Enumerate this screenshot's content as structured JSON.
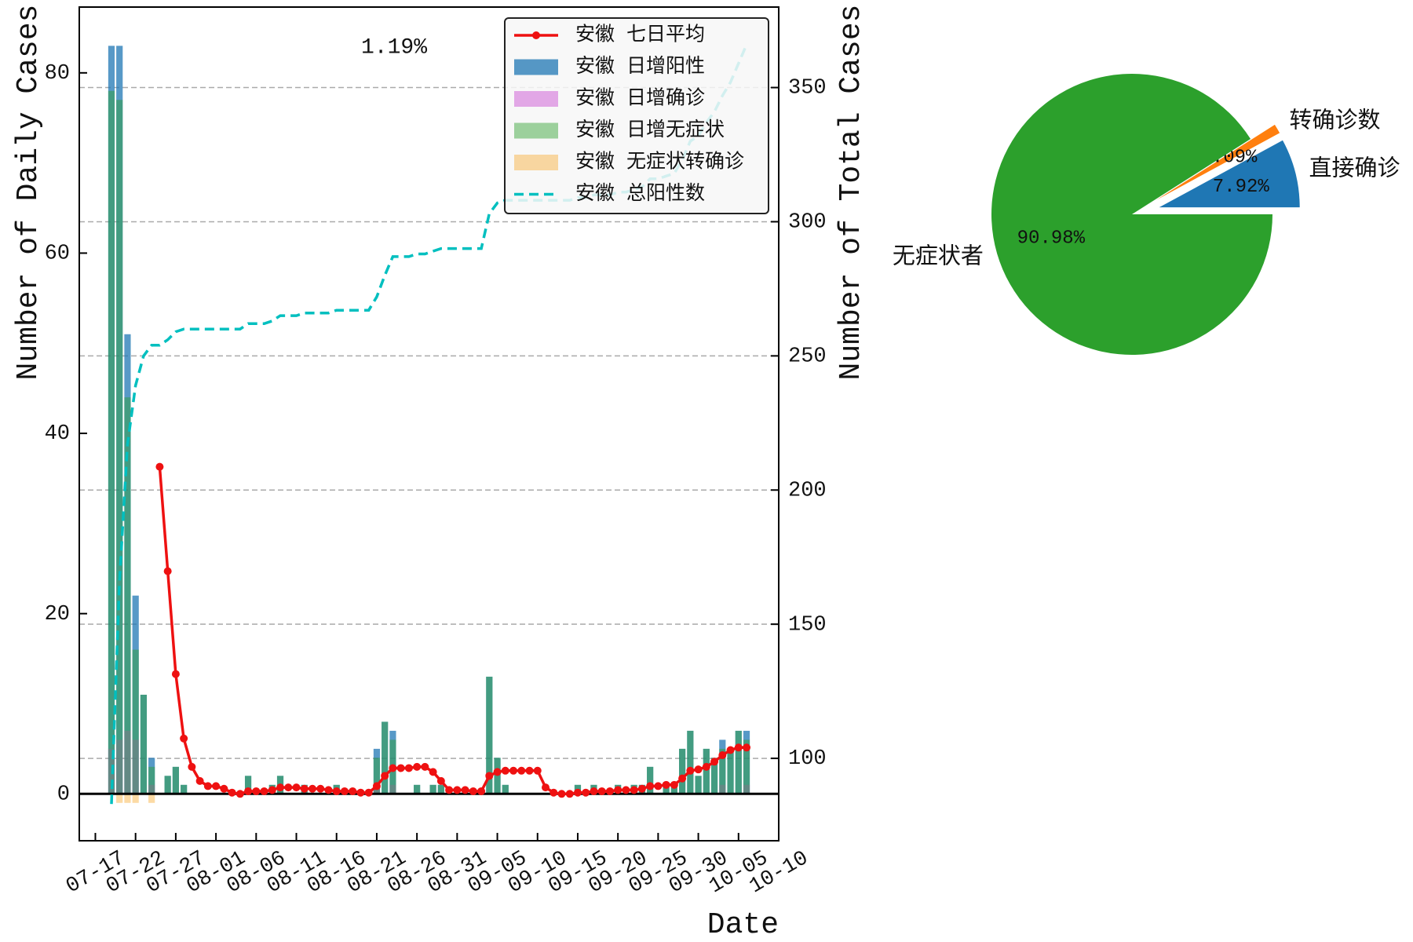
{
  "chart_data": [
    {
      "type": "bar",
      "xlabel": "Date",
      "ylabel": "Number of Daily Cases",
      "y2label": "Number of Total Cases",
      "annotation": "1.19%",
      "annotation_color": "#ff4444",
      "x": [
        "07-19",
        "07-20",
        "07-21",
        "07-22",
        "07-23",
        "07-24",
        "07-25",
        "07-26",
        "07-27",
        "07-28",
        "07-29",
        "07-30",
        "07-31",
        "08-01",
        "08-02",
        "08-03",
        "08-04",
        "08-05",
        "08-06",
        "08-07",
        "08-08",
        "08-09",
        "08-10",
        "08-11",
        "08-12",
        "08-13",
        "08-14",
        "08-15",
        "08-16",
        "08-17",
        "08-18",
        "08-19",
        "08-20",
        "08-21",
        "08-22",
        "08-23",
        "08-24",
        "08-25",
        "08-26",
        "08-27",
        "08-28",
        "08-29",
        "08-30",
        "08-31",
        "09-01",
        "09-02",
        "09-03",
        "09-04",
        "09-05",
        "09-06",
        "09-07",
        "09-08",
        "09-09",
        "09-10",
        "09-11",
        "09-12",
        "09-13",
        "09-14",
        "09-15",
        "09-16",
        "09-17",
        "09-18",
        "09-19",
        "09-20",
        "09-21",
        "09-22",
        "09-23",
        "09-24",
        "09-25",
        "09-26",
        "09-27",
        "09-28",
        "09-29",
        "09-30",
        "10-01",
        "10-02",
        "10-03",
        "10-04",
        "10-05",
        "10-06"
      ],
      "xlim": [
        "07-15",
        "10-10"
      ],
      "xticks": [
        "07-17",
        "07-22",
        "07-27",
        "08-01",
        "08-06",
        "08-11",
        "08-16",
        "08-21",
        "08-26",
        "08-31",
        "09-05",
        "09-10",
        "09-15",
        "09-20",
        "09-25",
        "09-30",
        "10-05",
        "10-10"
      ],
      "ylim": [
        -5.2,
        87.3
      ],
      "yticks": [
        0,
        20,
        40,
        60,
        80
      ],
      "y2lim": [
        69.3,
        380
      ],
      "y2ticks": [
        100,
        150,
        200,
        250,
        300,
        350
      ],
      "grid": "y2",
      "legend": "upper right",
      "series": [
        {
          "name": "安徽 七日平均",
          "type": "line",
          "color": "#ee1111",
          "marker": "o",
          "values": [
            null,
            null,
            null,
            null,
            null,
            null,
            36.29,
            24.71,
            13.29,
            6.14,
            3.0,
            1.43,
            0.86,
            0.86,
            0.57,
            0.14,
            0,
            0.29,
            0.29,
            0.29,
            0.43,
            0.71,
            0.71,
            0.71,
            0.57,
            0.57,
            0.57,
            0.43,
            0.29,
            0.29,
            0.29,
            0.14,
            0.14,
            0.86,
            2.0,
            2.86,
            2.86,
            2.86,
            3.0,
            3.0,
            2.43,
            1.43,
            0.43,
            0.43,
            0.43,
            0.29,
            0.29,
            2.0,
            2.43,
            2.57,
            2.57,
            2.57,
            2.57,
            2.57,
            0.71,
            0.14,
            0,
            0,
            0.14,
            0.14,
            0.29,
            0.29,
            0.29,
            0.43,
            0.43,
            0.43,
            0.57,
            0.86,
            0.86,
            1.0,
            1.0,
            1.71,
            2.57,
            2.71,
            3.0,
            3.57,
            4.29,
            4.86,
            5.14,
            5.14
          ]
        },
        {
          "name": "安徽 日增阳性",
          "type": "bar",
          "color": "#1f77b4bf",
          "values": [
            83,
            83,
            51,
            22,
            11,
            4,
            0,
            2,
            3,
            1,
            0,
            0,
            0,
            0,
            0,
            0,
            0,
            2,
            0,
            0,
            1,
            2,
            0,
            0,
            1,
            0,
            0,
            0,
            1,
            0,
            0,
            0,
            0,
            5,
            8,
            7,
            0,
            0,
            1,
            0,
            1,
            1,
            0,
            0,
            0,
            0,
            0,
            13,
            4,
            1,
            0,
            0,
            0,
            0,
            0,
            0,
            0,
            0,
            1,
            0,
            1,
            0,
            0,
            1,
            0,
            1,
            1,
            3,
            0,
            1,
            1,
            5,
            7,
            2,
            5,
            4,
            6,
            5,
            7,
            7
          ]
        },
        {
          "name": "安徽 日增确诊",
          "type": "bar",
          "color": "#cc55d480",
          "values": [
            5,
            6,
            7,
            6,
            0,
            1,
            0,
            0,
            0,
            0,
            0,
            0,
            0,
            0,
            0,
            0,
            0,
            0,
            0,
            0,
            0,
            0,
            0,
            0,
            0,
            0,
            0,
            0,
            0,
            0,
            0,
            0,
            0,
            1,
            0,
            1,
            0,
            0,
            0,
            0,
            0,
            0,
            0,
            0,
            0,
            0,
            0,
            0,
            0,
            0,
            0,
            0,
            0,
            0,
            0,
            0,
            0,
            0,
            0,
            0,
            0,
            0,
            0,
            0,
            0,
            0,
            0,
            0,
            0,
            0,
            0,
            0,
            0,
            0,
            0,
            0,
            1,
            0,
            0,
            1
          ]
        },
        {
          "name": "安徽 日增无症状",
          "type": "bar",
          "color": "#2ca02c73",
          "values": [
            78,
            77,
            44,
            16,
            11,
            3,
            0,
            2,
            3,
            1,
            0,
            0,
            0,
            0,
            0,
            0,
            0,
            2,
            0,
            0,
            1,
            2,
            0,
            0,
            1,
            0,
            0,
            0,
            1,
            0,
            0,
            0,
            0,
            4,
            8,
            6,
            0,
            0,
            1,
            0,
            1,
            1,
            0,
            0,
            0,
            0,
            0,
            13,
            4,
            1,
            0,
            0,
            0,
            0,
            0,
            0,
            0,
            0,
            1,
            0,
            1,
            0,
            0,
            1,
            0,
            1,
            1,
            3,
            0,
            1,
            1,
            5,
            7,
            2,
            5,
            4,
            5,
            5,
            7,
            6
          ]
        },
        {
          "name": "安徽 无症状转确诊",
          "type": "bar",
          "color": "#f7a8266b",
          "values": [
            0,
            -1,
            -1,
            -1,
            0,
            -1,
            0,
            0,
            0,
            0,
            0,
            0,
            0,
            0,
            0,
            0,
            0,
            0,
            0,
            0,
            0,
            0,
            0,
            0,
            0,
            0,
            0,
            0,
            0,
            0,
            0,
            0,
            0,
            0,
            0,
            0,
            0,
            0,
            0,
            0,
            0,
            0,
            0,
            0,
            0,
            0,
            0,
            0,
            0,
            0,
            0,
            0,
            0,
            0,
            0,
            0,
            0,
            0,
            0,
            0,
            0,
            0,
            0,
            0,
            0,
            0,
            0,
            0,
            0,
            0,
            0,
            0,
            0,
            0,
            0,
            0,
            0,
            0,
            0,
            0
          ]
        },
        {
          "name": "安徽 总阳性数",
          "type": "line",
          "color": "#00bfbf",
          "linestyle": "dashed",
          "axis": "y2",
          "values": [
            83,
            166,
            217,
            239,
            250,
            254,
            254,
            256,
            259,
            260,
            260,
            260,
            260,
            260,
            260,
            260,
            260,
            262,
            262,
            262,
            263,
            265,
            265,
            265,
            266,
            266,
            266,
            266,
            267,
            267,
            267,
            267,
            267,
            272,
            280,
            287,
            287,
            287,
            288,
            288,
            289,
            290,
            290,
            290,
            290,
            290,
            290,
            303,
            307,
            308,
            308,
            308,
            308,
            308,
            308,
            308,
            308,
            308,
            309,
            309,
            310,
            310,
            310,
            311,
            311,
            312,
            313,
            316,
            316,
            317,
            318,
            323,
            330,
            332,
            337,
            341,
            347,
            352,
            359,
            366
          ]
        }
      ]
    },
    {
      "type": "pie",
      "labels": [
        "直接确诊",
        "转确诊数",
        "无症状者"
      ],
      "values": [
        7.92,
        1.09,
        90.98
      ],
      "value_labels": [
        "7.92%",
        "1.09%",
        "90.98%"
      ],
      "colors": [
        "#1f77b4",
        "#ff7f0e",
        "#2ca02c"
      ]
    }
  ]
}
